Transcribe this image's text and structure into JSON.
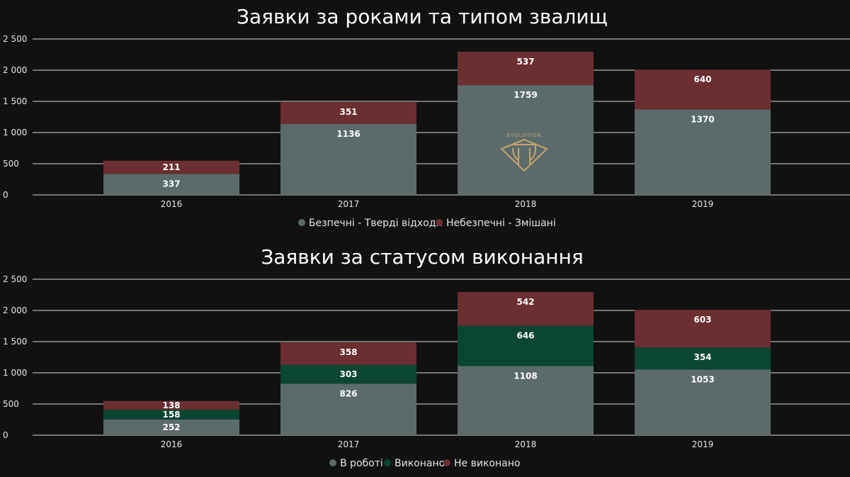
{
  "chart_data": [
    {
      "type": "bar",
      "stacked": true,
      "title": "Заявки за роками та типом звалищ",
      "categories": [
        "2016",
        "2017",
        "2018",
        "2019"
      ],
      "series": [
        {
          "name": "Безпечні - Тверді відходи",
          "values": [
            337,
            1136,
            1759,
            1370
          ],
          "color": "#5b6b6c"
        },
        {
          "name": "Небезпечні - Змішані",
          "values": [
            211,
            351,
            537,
            640
          ],
          "color": "#6b2e31"
        }
      ],
      "ylim": [
        0,
        2500
      ],
      "yticks": [
        0,
        500,
        1000,
        1500,
        2000,
        2500
      ],
      "ytick_labels": [
        "0",
        "500",
        "1 000",
        "1 500",
        "2 000",
        "2 500"
      ],
      "grid": true,
      "legend_position": "bottom-center"
    },
    {
      "type": "bar",
      "stacked": true,
      "title": "Заявки за статусом виконання",
      "categories": [
        "2016",
        "2017",
        "2018",
        "2019"
      ],
      "series": [
        {
          "name": "В роботі",
          "values": [
            252,
            826,
            1108,
            1053
          ],
          "color": "#5b6b6c"
        },
        {
          "name": "Виконано",
          "values": [
            158,
            303,
            646,
            354
          ],
          "color": "#0b4633"
        },
        {
          "name": "Не виконано",
          "values": [
            138,
            358,
            542,
            603
          ],
          "color": "#6b2e31"
        }
      ],
      "ylim": [
        0,
        2500
      ],
      "yticks": [
        0,
        500,
        1000,
        1500,
        2000,
        2500
      ],
      "ytick_labels": [
        "0",
        "500",
        "1 000",
        "1 500",
        "2 000",
        "2 500"
      ],
      "grid": true,
      "legend_position": "bottom-center"
    }
  ],
  "logo": {
    "text": "EVOLUTION",
    "icon": "evolution-diamond-logo-icon",
    "color": "#c9a56a"
  }
}
